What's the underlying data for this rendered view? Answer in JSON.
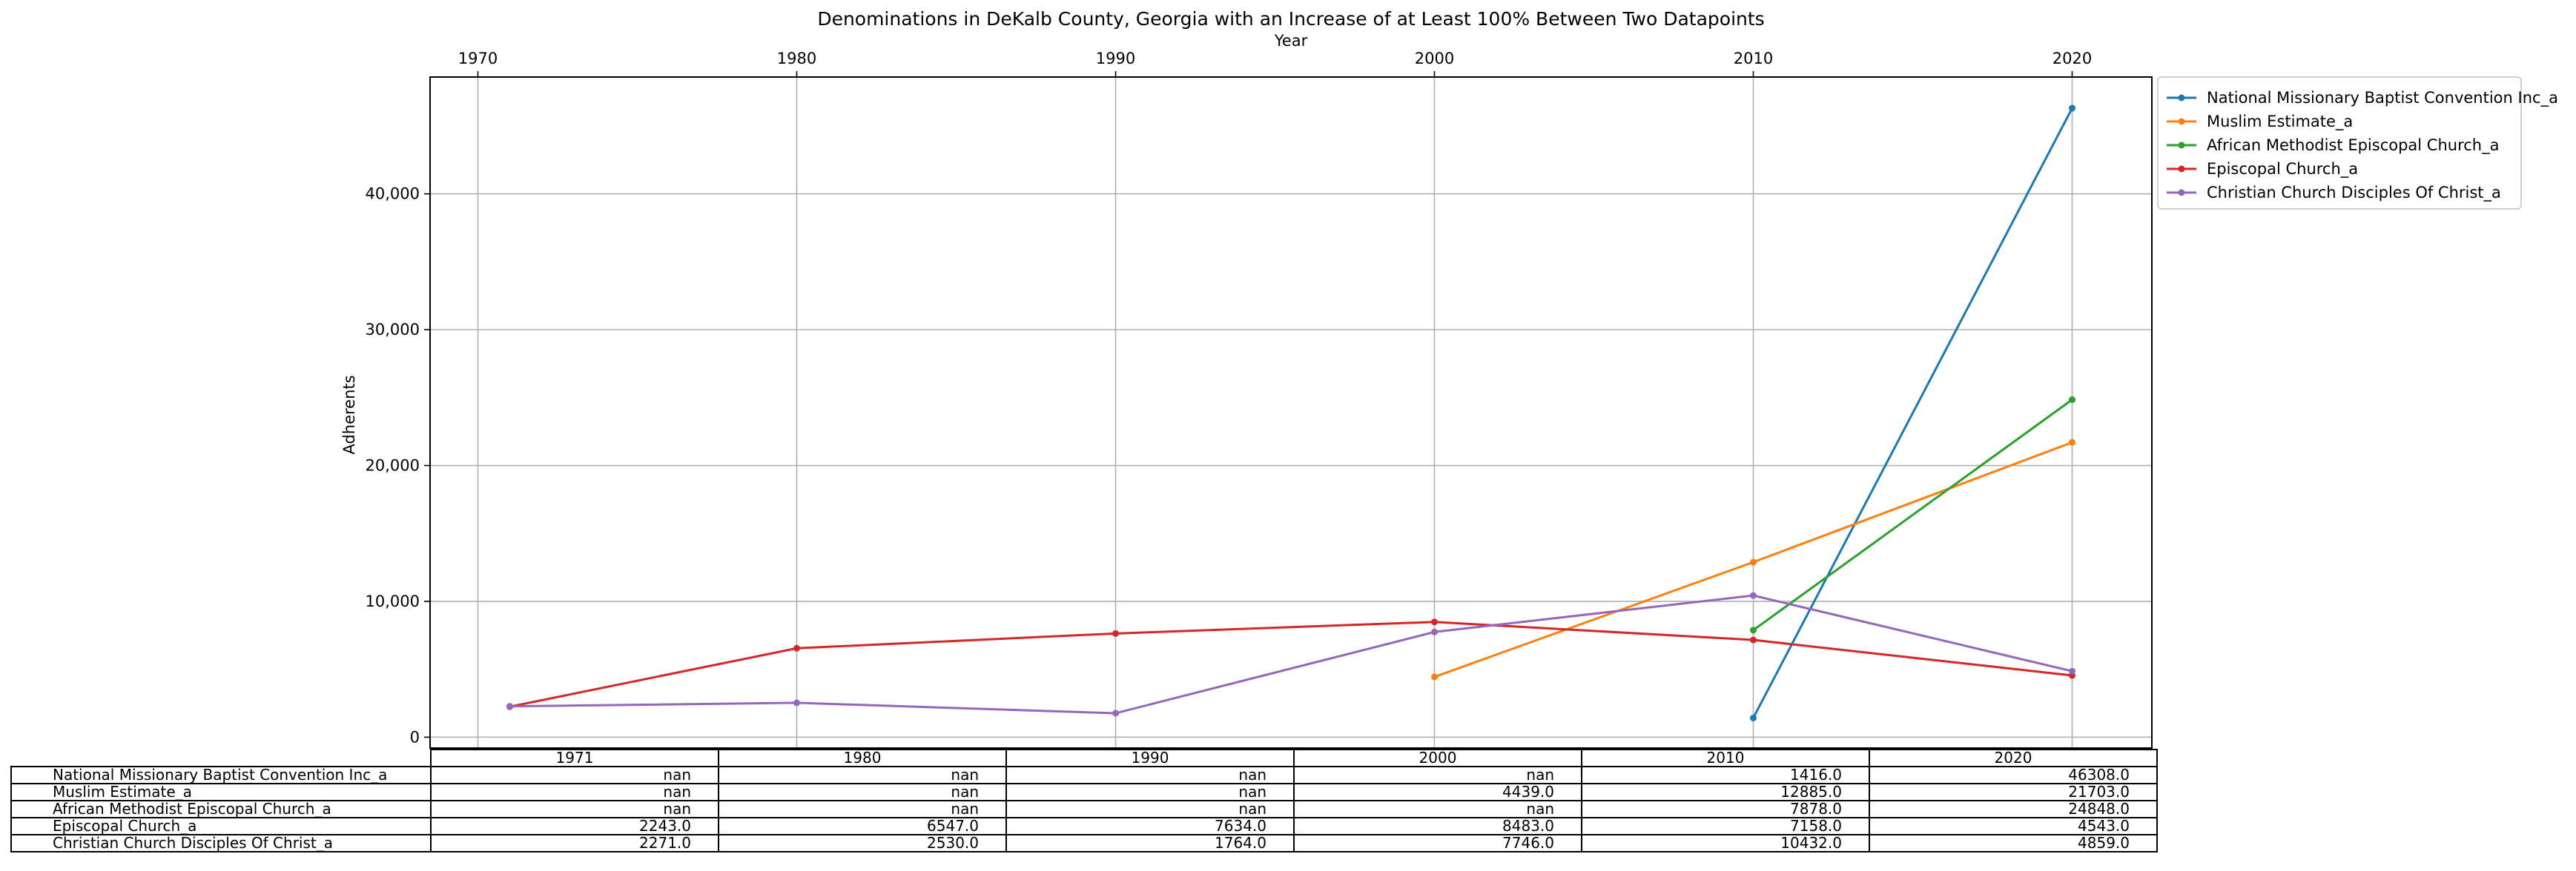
{
  "chart_data": {
    "type": "line",
    "title": "Denominations in DeKalb County, Georgia with an Increase of at Least 100% Between Two Datapoints",
    "xlabel": "Year",
    "ylabel": "Adherents",
    "x_ticks": [
      "1970",
      "1980",
      "1990",
      "2000",
      "2010",
      "2020"
    ],
    "y_ticks": [
      "0",
      "10,000",
      "20,000",
      "30,000",
      "40,000"
    ],
    "xlim": [
      1968.5,
      2022.5
    ],
    "ylim": [
      -800,
      48600
    ],
    "grid": true,
    "legend_position": "outside-right-top",
    "x": [
      1971,
      1980,
      1990,
      2000,
      2010,
      2020
    ],
    "series": [
      {
        "name": "National Missionary Baptist Convention Inc_a",
        "color": "#1f77b4",
        "values": [
          null,
          null,
          null,
          null,
          1416.0,
          46308.0
        ]
      },
      {
        "name": "Muslim Estimate_a",
        "color": "#ff7f0e",
        "values": [
          null,
          null,
          null,
          4439.0,
          12885.0,
          21703.0
        ]
      },
      {
        "name": "African Methodist Episcopal Church_a",
        "color": "#2ca02c",
        "values": [
          null,
          null,
          null,
          null,
          7878.0,
          24848.0
        ]
      },
      {
        "name": "Episcopal Church_a",
        "color": "#d62728",
        "values": [
          2243.0,
          6547.0,
          7634.0,
          8483.0,
          7158.0,
          4543.0
        ]
      },
      {
        "name": "Christian Church Disciples Of Christ_a",
        "color": "#9467bd",
        "values": [
          2271.0,
          2530.0,
          1764.0,
          7746.0,
          10432.0,
          4859.0
        ]
      }
    ]
  },
  "table": {
    "columns": [
      "1971",
      "1980",
      "1990",
      "2000",
      "2010",
      "2020"
    ],
    "rows": [
      {
        "label": "National Missionary Baptist Convention Inc_a",
        "cells": [
          "nan",
          "nan",
          "nan",
          "nan",
          "1416.0",
          "46308.0"
        ]
      },
      {
        "label": "Muslim Estimate_a",
        "cells": [
          "nan",
          "nan",
          "nan",
          "4439.0",
          "12885.0",
          "21703.0"
        ]
      },
      {
        "label": "African Methodist Episcopal Church_a",
        "cells": [
          "nan",
          "nan",
          "nan",
          "nan",
          "7878.0",
          "24848.0"
        ]
      },
      {
        "label": "Episcopal Church_a",
        "cells": [
          "2243.0",
          "6547.0",
          "7634.0",
          "8483.0",
          "7158.0",
          "4543.0"
        ]
      },
      {
        "label": "Christian Church Disciples Of Christ_a",
        "cells": [
          "2271.0",
          "2530.0",
          "1764.0",
          "7746.0",
          "10432.0",
          "4859.0"
        ]
      }
    ]
  }
}
